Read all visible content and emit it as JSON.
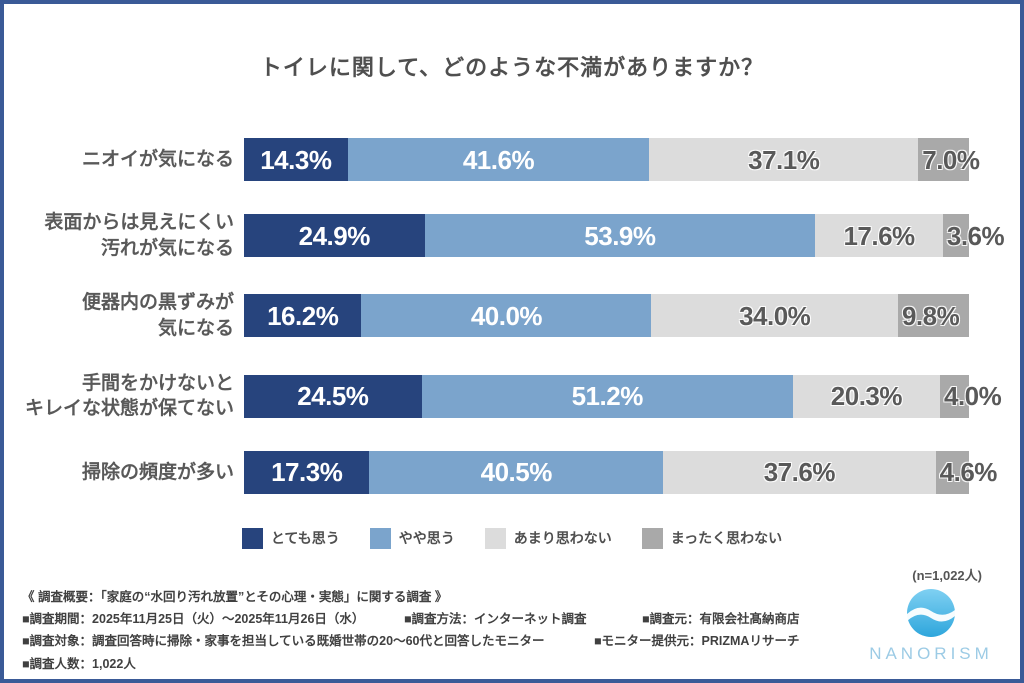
{
  "title": "トイレに関して、どのような不満がありますか？",
  "chart_data": {
    "type": "bar",
    "orientation": "horizontal",
    "stacked": true,
    "value_suffix": "%",
    "xlim": [
      0,
      100
    ],
    "categories": [
      [
        "ニオイが気になる"
      ],
      [
        "表面からは見えにくい",
        "汚れが気になる"
      ],
      [
        "便器内の黒ずみが",
        "気になる"
      ],
      [
        "手間をかけないと",
        "キレイな状態が保てない"
      ],
      [
        "掃除の頻度が多い"
      ]
    ],
    "series": [
      {
        "name": "とても思う",
        "color": "#27447d",
        "text_color": "#ffffff",
        "values": [
          14.3,
          24.9,
          16.2,
          24.5,
          17.3
        ]
      },
      {
        "name": "やや思う",
        "color": "#7ba4cc",
        "text_color": "#ffffff",
        "values": [
          41.6,
          53.9,
          40.0,
          51.2,
          40.5
        ]
      },
      {
        "name": "あまり思わない",
        "color": "#dcdcdc",
        "text_color": "#595959",
        "values": [
          37.1,
          17.6,
          34.0,
          20.3,
          37.6
        ]
      },
      {
        "name": "まったく思わない",
        "color": "#a9a9a9",
        "text_color": "#595959",
        "values": [
          7.0,
          3.6,
          9.8,
          4.0,
          4.6
        ]
      }
    ],
    "legend_position": "bottom"
  },
  "sample_label": "(n=1,022人)",
  "footer": {
    "line1": "《 調査概要：「家庭の“水回り汚れ放置”とその心理・実態」に関する調査 》",
    "line2_items": [
      "■調査期間：2025年11月25日（火）〜2025年11月26日（水）",
      "■調査方法：インターネット調査",
      "■調査元：有限会社髙納商店"
    ],
    "line3_items": [
      "■調査対象：調査回答時に掃除・家事を担当している既婚世帯の20〜60代と回答したモニター",
      "■モニター提供元：PRIZMAリサーチ"
    ],
    "line4_items": [
      "■調査人数：1,022人"
    ]
  },
  "logo": {
    "name": "NANORISM"
  },
  "colors": {
    "frame_border": "#3a5a97"
  }
}
